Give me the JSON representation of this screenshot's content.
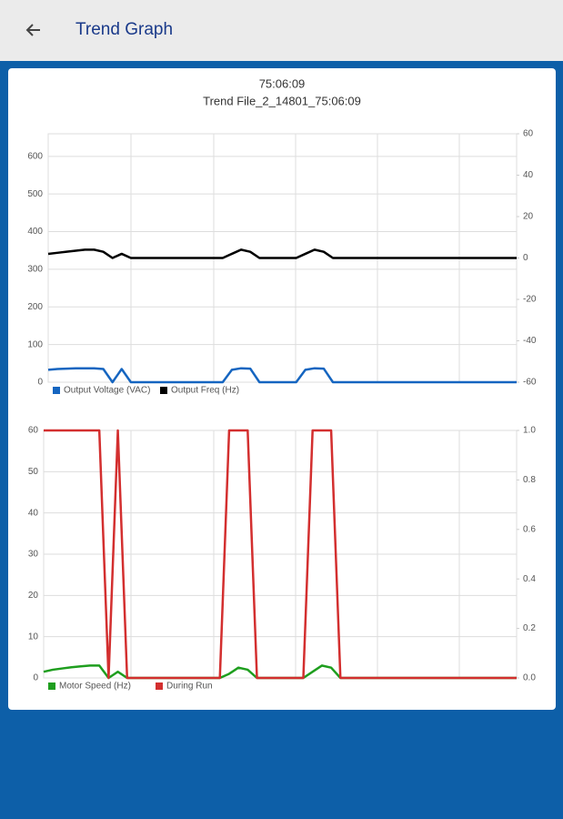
{
  "header": {
    "title": "Trend Graph"
  },
  "card": {
    "title": "75:06:09",
    "subtitle": "Trend File_2_14801_75:06:09"
  },
  "chart_data": [
    {
      "type": "line",
      "categories": [
        null,
        null,
        null,
        null,
        null,
        null,
        null,
        null,
        null,
        null,
        null,
        null,
        null,
        null,
        null,
        null,
        null,
        null,
        null,
        null,
        null,
        null,
        null,
        null,
        null,
        null,
        null,
        null,
        null,
        null,
        null,
        null,
        null,
        null,
        null,
        null,
        null,
        null,
        null,
        null,
        null,
        null,
        null,
        null,
        null,
        null,
        null,
        null,
        null,
        null,
        null,
        null
      ],
      "series": [
        {
          "name": "Output Voltage (VAC)",
          "color": "#1565c0",
          "values": [
            33,
            35,
            36,
            37,
            37,
            37,
            35,
            0,
            35,
            0,
            0,
            0,
            0,
            0,
            0,
            0,
            0,
            0,
            0,
            0,
            33,
            37,
            36,
            0,
            0,
            0,
            0,
            0,
            33,
            37,
            36,
            0,
            0,
            0,
            0,
            0,
            0,
            0,
            0,
            0,
            0,
            0,
            0,
            0,
            0,
            0,
            0,
            0,
            0,
            0,
            0,
            0
          ]
        },
        {
          "name": "Output Freq (Hz)",
          "color": "#000000",
          "axis": "y2",
          "values": [
            2,
            2.5,
            3,
            3.5,
            4,
            4,
            3,
            0,
            2,
            0,
            0,
            0,
            0,
            0,
            0,
            0,
            0,
            0,
            0,
            0,
            2,
            4,
            3,
            0,
            0,
            0,
            0,
            0,
            2,
            4,
            3,
            0,
            0,
            0,
            0,
            0,
            0,
            0,
            0,
            0,
            0,
            0,
            0,
            0,
            0,
            0,
            0,
            0,
            0,
            0,
            0,
            0
          ]
        }
      ],
      "ylim": [
        0,
        660
      ],
      "yticks": [
        0,
        100,
        200,
        300,
        400,
        500,
        600
      ],
      "y2lim": [
        -60,
        60
      ],
      "y2ticks": [
        -60,
        -40,
        -20,
        0,
        20,
        40,
        60
      ],
      "grid": true,
      "legend": "bottom-left"
    },
    {
      "type": "line",
      "categories": [
        null,
        null,
        null,
        null,
        null,
        null,
        null,
        null,
        null,
        null,
        null,
        null,
        null,
        null,
        null,
        null,
        null,
        null,
        null,
        null,
        null,
        null,
        null,
        null,
        null,
        null,
        null,
        null,
        null,
        null,
        null,
        null,
        null,
        null,
        null,
        null,
        null,
        null,
        null,
        null,
        null,
        null,
        null,
        null,
        null,
        null,
        null,
        null,
        null,
        null,
        null,
        null
      ],
      "series": [
        {
          "name": "Motor Speed (Hz)",
          "color": "#1e9e1e",
          "values": [
            1.5,
            2,
            2.3,
            2.6,
            2.8,
            3,
            3,
            0,
            1.5,
            0,
            0,
            0,
            0,
            0,
            0,
            0,
            0,
            0,
            0,
            0,
            1,
            2.5,
            2,
            0,
            0,
            0,
            0,
            0,
            0,
            1.5,
            3,
            2.5,
            0,
            0,
            0,
            0,
            0,
            0,
            0,
            0,
            0,
            0,
            0,
            0,
            0,
            0,
            0,
            0,
            0,
            0,
            0,
            0
          ]
        },
        {
          "name": "During Run",
          "color": "#d32f2f",
          "axis": "y2",
          "values": [
            1,
            1,
            1,
            1,
            1,
            1,
            1,
            0,
            1,
            0,
            0,
            0,
            0,
            0,
            0,
            0,
            0,
            0,
            0,
            0,
            1,
            1,
            1,
            0,
            0,
            0,
            0,
            0,
            0,
            1,
            1,
            1,
            0,
            0,
            0,
            0,
            0,
            0,
            0,
            0,
            0,
            0,
            0,
            0,
            0,
            0,
            0,
            0,
            0,
            0,
            0,
            0
          ]
        }
      ],
      "ylim": [
        0,
        60
      ],
      "yticks": [
        0,
        10,
        20,
        30,
        40,
        50,
        60
      ],
      "y2lim": [
        0,
        1
      ],
      "y2ticks": [
        {
          "value": 0,
          "label": "0.0"
        },
        0.2,
        0.4,
        0.6,
        0.8,
        {
          "value": 1,
          "label": "1.0"
        }
      ],
      "grid": true,
      "legend": "bottom-left"
    }
  ]
}
